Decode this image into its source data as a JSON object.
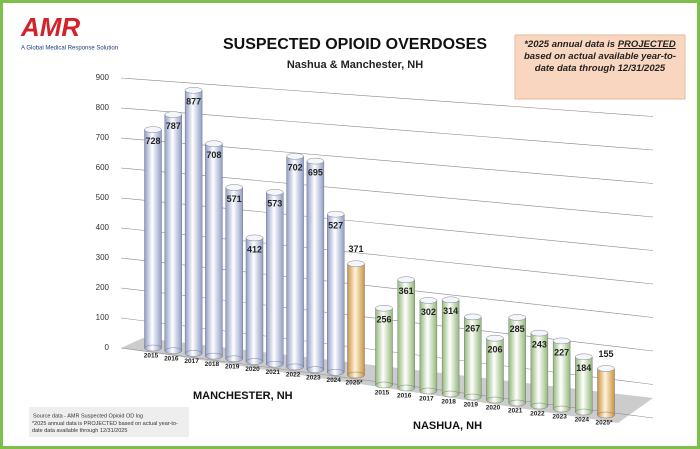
{
  "logo": {
    "name": "AMR",
    "tagline": "A Global Medical Response Solution"
  },
  "note": {
    "before": "*2025 annual data is ",
    "emphasis": "PROJECTED",
    "after": " based on actual available year-to-date data through 12/31/2025"
  },
  "source": {
    "line1": "Source data - AMR Suspected Opioid OD log",
    "line2": "*2025 annual data is PROJECTED based on actual year-to-date data available through 12/31/2025"
  },
  "chart_data": {
    "type": "bar",
    "title": "SUSPECTED OPIOID OVERDOSES",
    "subtitle": "Nashua & Manchester, NH",
    "categories": [
      "2015",
      "2016",
      "2017",
      "2018",
      "2019",
      "2020",
      "2021",
      "2022",
      "2023",
      "2024",
      "2025*"
    ],
    "series": [
      {
        "name": "MANCHESTER, NH",
        "color": "#c9d3ea",
        "values": [
          728,
          787,
          877,
          708,
          571,
          412,
          573,
          702,
          695,
          527,
          371
        ]
      },
      {
        "name": "NASHUA, NH",
        "color": "#cfe6b8",
        "values": [
          256,
          361,
          302,
          314,
          267,
          206,
          285,
          243,
          227,
          184,
          155
        ]
      }
    ],
    "projected_color": "#f3c98a",
    "ylim": [
      0,
      900
    ],
    "yticks": [
      0,
      100,
      200,
      300,
      400,
      500,
      600,
      700,
      800,
      900
    ],
    "grid": true
  }
}
